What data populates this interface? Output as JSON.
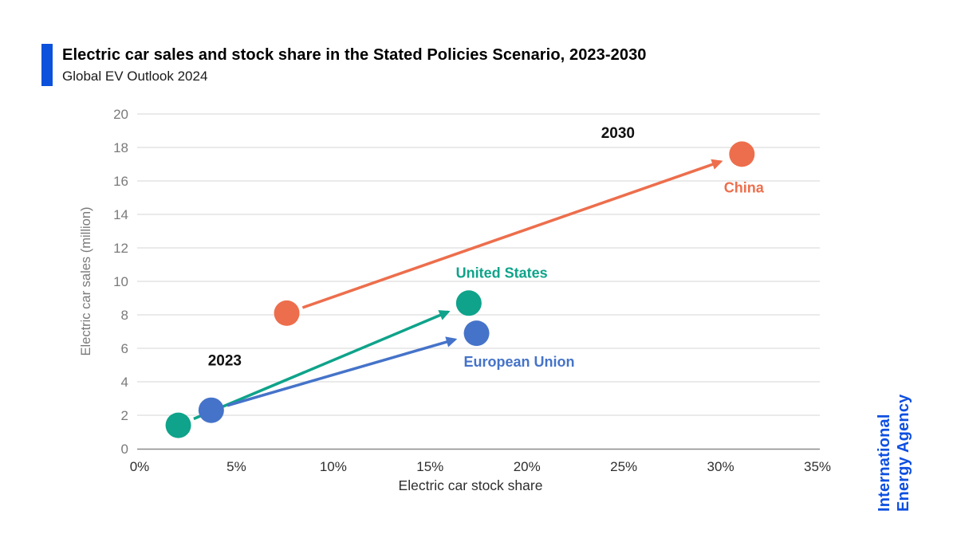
{
  "page": {
    "background": "#FFFFFF"
  },
  "header": {
    "accent_color": "#0C51DB",
    "title": "Electric car sales and stock share in the Stated Policies Scenario, 2023-2030",
    "subtitle": "Global EV Outlook 2024"
  },
  "branding": {
    "color": "#0E4FE1",
    "line1": "International",
    "line2": "Energy Agency"
  },
  "chart_data": {
    "type": "scatter",
    "xlabel": "Electric car stock share",
    "ylabel": "Electric car sales (million)",
    "xlim": [
      0,
      35
    ],
    "ylim": [
      0,
      20
    ],
    "x_ticks": [
      0,
      5,
      10,
      15,
      20,
      25,
      30,
      35
    ],
    "x_tick_suffix": "%",
    "y_ticks": [
      0,
      2,
      4,
      6,
      8,
      10,
      12,
      14,
      16,
      18,
      20
    ],
    "grid": "horizontal",
    "legend_position": "none",
    "axis_colors": {
      "grid": "#DDDDDD",
      "axis_line": "#8A8A8A",
      "y_tick": "#7A7A7A",
      "x_tick": "#2E2E2E",
      "y_label": "#7A7A7A",
      "x_label": "#2E2E2E",
      "year_label": "#111111"
    },
    "series": [
      {
        "name": "China",
        "color": "#ED6E4C",
        "points": [
          {
            "year": "2023",
            "x": 7.6,
            "y": 8.1
          },
          {
            "year": "2030",
            "x": 31.1,
            "y": 17.6
          }
        ]
      },
      {
        "name": "United States",
        "color": "#0EA38A",
        "points": [
          {
            "year": "2023",
            "x": 2.0,
            "y": 1.4
          },
          {
            "year": "2030",
            "x": 17.0,
            "y": 8.7
          }
        ]
      },
      {
        "name": "European Union",
        "color": "#4573C9",
        "points": [
          {
            "year": "2023",
            "x": 3.7,
            "y": 2.3
          },
          {
            "year": "2030",
            "x": 17.4,
            "y": 6.9
          }
        ]
      }
    ],
    "series_labels": [
      {
        "text": "China",
        "x": 31.2,
        "y": 15.6,
        "color": "#ED6E4C"
      },
      {
        "text": "United States",
        "x": 18.7,
        "y": 10.5,
        "color": "#0EA38A"
      },
      {
        "text": "European Union",
        "x": 19.6,
        "y": 5.2,
        "color": "#4573C9"
      }
    ],
    "year_labels": [
      {
        "text": "2023",
        "x": 4.4,
        "y": 5.3
      },
      {
        "text": "2030",
        "x": 24.7,
        "y": 18.9
      }
    ],
    "arrows_from_2023_to_2030": true
  }
}
